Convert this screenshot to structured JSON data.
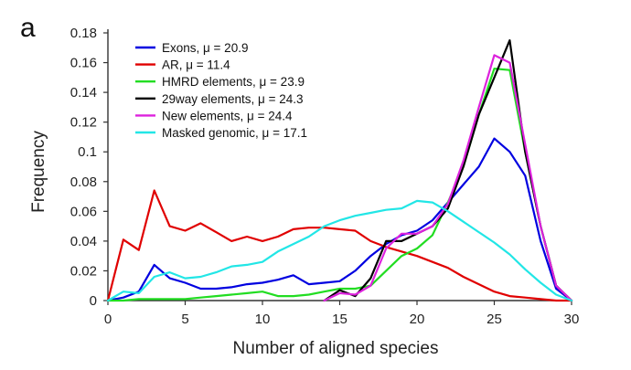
{
  "panel_label": "a",
  "chart_data": {
    "type": "line",
    "xlabel": "Number of aligned species",
    "ylabel": "Frequency",
    "xlim": [
      0,
      30
    ],
    "ylim": [
      0,
      0.18
    ],
    "xticks": [
      0,
      5,
      10,
      15,
      20,
      25,
      30
    ],
    "yticks": [
      0,
      0.02,
      0.04,
      0.06,
      0.08,
      0.1,
      0.12,
      0.14,
      0.16,
      0.18
    ],
    "ytick_labels": [
      "0",
      "0.02",
      "0.04",
      "0.06",
      "0.08",
      "0.1",
      "0.12",
      "0.14",
      "0.16",
      "0.18"
    ],
    "legend_position": "top-left",
    "grid": false,
    "x": [
      0,
      1,
      2,
      3,
      4,
      5,
      6,
      7,
      8,
      9,
      10,
      11,
      12,
      13,
      14,
      15,
      16,
      17,
      18,
      19,
      20,
      21,
      22,
      23,
      24,
      25,
      26,
      27,
      28,
      29,
      30
    ],
    "series": [
      {
        "name": "Exons, μ = 20.9",
        "color": "#0000e0",
        "values": [
          0,
          0.002,
          0.006,
          0.024,
          0.015,
          0.012,
          0.008,
          0.008,
          0.009,
          0.011,
          0.012,
          0.014,
          0.017,
          0.011,
          0.012,
          0.013,
          0.02,
          0.03,
          0.038,
          0.044,
          0.047,
          0.054,
          0.066,
          0.078,
          0.09,
          0.109,
          0.1,
          0.084,
          0.04,
          0.008,
          0
        ]
      },
      {
        "name": "AR, μ = 11.4",
        "color": "#e00000",
        "values": [
          0,
          0.041,
          0.034,
          0.074,
          0.05,
          0.047,
          0.052,
          0.046,
          0.04,
          0.043,
          0.04,
          0.043,
          0.048,
          0.049,
          0.049,
          0.048,
          0.047,
          0.04,
          0.036,
          0.033,
          0.03,
          0.026,
          0.022,
          0.016,
          0.011,
          0.006,
          0.003,
          0.002,
          0.001,
          0,
          0
        ]
      },
      {
        "name": "HMRD elements, μ = 23.9",
        "color": "#22dd22",
        "values": [
          0,
          0,
          0.001,
          0.001,
          0.001,
          0.001,
          0.002,
          0.003,
          0.004,
          0.005,
          0.006,
          0.003,
          0.003,
          0.004,
          0.006,
          0.008,
          0.008,
          0.01,
          0.02,
          0.03,
          0.035,
          0.044,
          0.066,
          0.09,
          0.125,
          0.156,
          0.155,
          0.1,
          0.05,
          0.01,
          0
        ]
      },
      {
        "name": "29way elements, μ = 24.3",
        "color": "#000000",
        "values": [
          null,
          null,
          null,
          null,
          null,
          null,
          null,
          null,
          null,
          null,
          null,
          null,
          null,
          null,
          0,
          0.007,
          0.003,
          0.015,
          0.04,
          0.04,
          0.045,
          0.05,
          0.062,
          0.09,
          0.125,
          0.15,
          0.175,
          0.1,
          0.05,
          0.01,
          0
        ]
      },
      {
        "name": "New elements, μ = 24.4",
        "color": "#dd22dd",
        "values": [
          null,
          null,
          null,
          null,
          null,
          null,
          null,
          null,
          null,
          null,
          null,
          null,
          null,
          null,
          0,
          0.005,
          0.004,
          0.01,
          0.035,
          0.045,
          0.045,
          0.05,
          0.065,
          0.094,
          0.13,
          0.165,
          0.16,
          0.105,
          0.05,
          0.01,
          0
        ]
      },
      {
        "name": "Masked genomic, μ = 17.1",
        "color": "#22e6e6",
        "values": [
          0,
          0.006,
          0.005,
          0.016,
          0.019,
          0.015,
          0.016,
          0.019,
          0.023,
          0.024,
          0.026,
          0.033,
          0.038,
          0.043,
          0.05,
          0.054,
          0.057,
          0.059,
          0.061,
          0.062,
          0.067,
          0.066,
          0.06,
          0.053,
          0.046,
          0.039,
          0.031,
          0.021,
          0.012,
          0.004,
          0
        ]
      }
    ]
  }
}
